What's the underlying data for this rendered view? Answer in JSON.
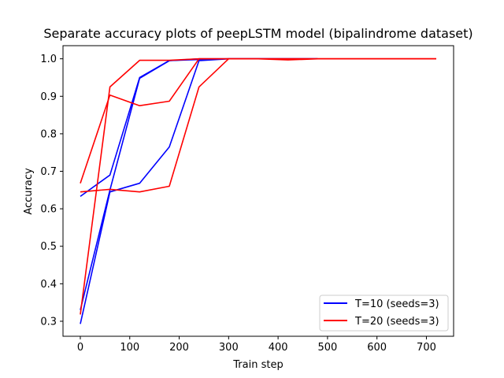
{
  "chart_data": {
    "type": "line",
    "title": "Separate accuracy plots of peepLSTM model (bipalindrome dataset)",
    "xlabel": "Train step",
    "ylabel": "Accuracy",
    "xlim": [
      -35,
      755
    ],
    "ylim": [
      0.26,
      1.035
    ],
    "xticks": [
      0,
      100,
      200,
      300,
      400,
      500,
      600,
      700
    ],
    "yticks": [
      0.3,
      0.4,
      0.5,
      0.6,
      0.7,
      0.8,
      0.9,
      1.0
    ],
    "xtick_labels": [
      "0",
      "100",
      "200",
      "300",
      "400",
      "500",
      "600",
      "700"
    ],
    "ytick_labels": [
      "0.3",
      "0.4",
      "0.5",
      "0.6",
      "0.7",
      "0.8",
      "0.9",
      "1.0"
    ],
    "grid": false,
    "legend_position": "lower-right",
    "legend": [
      {
        "label": "T=10 (seeds=3)",
        "color": "#0000ff"
      },
      {
        "label": "T=20 (seeds=3)",
        "color": "#ff0000"
      }
    ],
    "series": [
      {
        "group": "T=10 (seeds=3)",
        "color": "#0000ff",
        "x": [
          0,
          60,
          120,
          180,
          240,
          300,
          360,
          420,
          480
        ],
        "y": [
          0.633,
          0.69,
          0.95,
          0.995,
          1.0,
          1.0,
          1.0,
          1.0,
          1.0
        ]
      },
      {
        "group": "T=10 (seeds=3)",
        "color": "#0000ff",
        "x": [
          0,
          60,
          120,
          180,
          240,
          300,
          360,
          420,
          480
        ],
        "y": [
          0.293,
          0.645,
          0.668,
          0.765,
          0.995,
          1.0,
          1.0,
          1.0,
          1.0
        ]
      },
      {
        "group": "T=10 (seeds=3)",
        "color": "#0000ff",
        "x": [
          0,
          60,
          120,
          180,
          240,
          300,
          360,
          420,
          480
        ],
        "y": [
          0.33,
          0.65,
          0.948,
          0.995,
          0.998,
          1.0,
          1.0,
          1.0,
          1.0
        ]
      },
      {
        "group": "T=20 (seeds=3)",
        "color": "#ff0000",
        "x": [
          0,
          60,
          120,
          180,
          240,
          300,
          360,
          420,
          480,
          540,
          600,
          660,
          720
        ],
        "y": [
          0.668,
          0.903,
          0.875,
          0.887,
          1.0,
          1.0,
          1.0,
          0.997,
          1.0,
          1.0,
          1.0,
          1.0,
          1.0
        ]
      },
      {
        "group": "T=20 (seeds=3)",
        "color": "#ff0000",
        "x": [
          0,
          60,
          120,
          180,
          240,
          300,
          360,
          420,
          480,
          540,
          600,
          660,
          720
        ],
        "y": [
          0.645,
          0.652,
          0.645,
          0.66,
          0.925,
          1.0,
          1.0,
          1.0,
          1.0,
          1.0,
          1.0,
          1.0,
          1.0
        ]
      },
      {
        "group": "T=20 (seeds=3)",
        "color": "#ff0000",
        "x": [
          0,
          60,
          120,
          180,
          240,
          300,
          360,
          420,
          480,
          540,
          600,
          660,
          720
        ],
        "y": [
          0.318,
          0.925,
          0.996,
          0.996,
          1.0,
          1.0,
          1.0,
          1.0,
          1.0,
          1.0,
          1.0,
          1.0,
          1.0
        ]
      }
    ]
  }
}
